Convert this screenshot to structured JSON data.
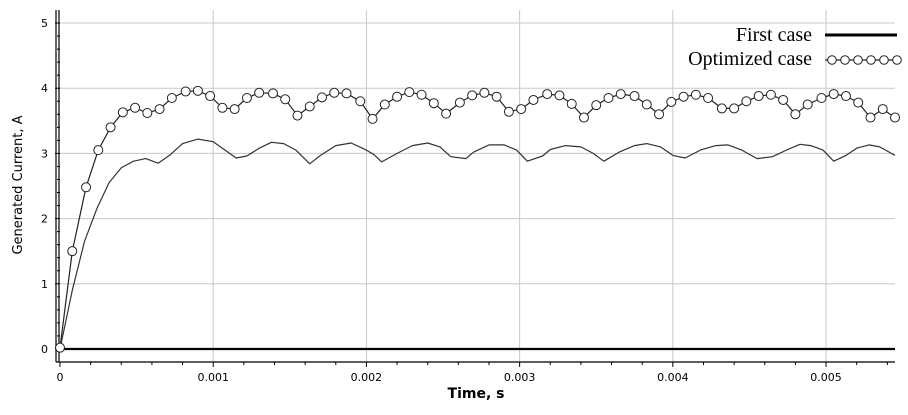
{
  "chart_data": {
    "type": "line",
    "title": "",
    "xlabel": "Time, s",
    "ylabel": "Generated Current, A",
    "xlim": [
      0,
      0.00545
    ],
    "ylim": [
      -0.2,
      5.2
    ],
    "xticks": [
      0,
      0.001,
      0.002,
      0.003,
      0.004,
      0.005
    ],
    "xtick_labels": [
      "0",
      "0.001",
      "0.002",
      "0.003",
      "0.004",
      "0.005"
    ],
    "yticks": [
      0,
      1,
      2,
      3,
      4,
      5
    ],
    "ytick_labels": [
      "0",
      "1",
      "2",
      "3",
      "4",
      "5"
    ],
    "grid": true,
    "legend_position": "top-right",
    "series": [
      {
        "name": "First case",
        "style": "line",
        "color": "#000000",
        "x": [
          0,
          0.00545
        ],
        "y": [
          0,
          0
        ]
      },
      {
        "name": "",
        "style": "line",
        "color": "#333333",
        "x": [
          0,
          8e-05,
          0.00016,
          0.00024,
          0.00032,
          0.0004,
          0.00048,
          0.00056,
          0.00064,
          0.00072,
          0.0008,
          0.0009,
          0.001,
          0.00106,
          0.00115,
          0.00122,
          0.0013,
          0.00138,
          0.00146,
          0.00154,
          0.00163,
          0.0017,
          0.0018,
          0.0019,
          0.002,
          0.00205,
          0.0021,
          0.0022,
          0.0023,
          0.0024,
          0.00248,
          0.00255,
          0.00265,
          0.0027,
          0.0028,
          0.0029,
          0.00298,
          0.00305,
          0.00315,
          0.0032,
          0.0033,
          0.0034,
          0.00348,
          0.00355,
          0.00365,
          0.00375,
          0.00383,
          0.00392,
          0.004,
          0.00408,
          0.00418,
          0.00428,
          0.00436,
          0.00445,
          0.00455,
          0.00465,
          0.00475,
          0.00483,
          0.0049,
          0.00498,
          0.00505,
          0.00513,
          0.0052,
          0.00528,
          0.00535,
          0.00545
        ],
        "y": [
          0,
          0.9,
          1.65,
          2.15,
          2.55,
          2.78,
          2.88,
          2.92,
          2.85,
          2.98,
          3.15,
          3.22,
          3.18,
          3.08,
          2.93,
          2.96,
          3.08,
          3.17,
          3.15,
          3.05,
          2.84,
          2.97,
          3.12,
          3.16,
          3.05,
          2.98,
          2.87,
          3.0,
          3.12,
          3.16,
          3.1,
          2.95,
          2.92,
          3.02,
          3.13,
          3.13,
          3.05,
          2.88,
          2.96,
          3.06,
          3.12,
          3.1,
          3.0,
          2.88,
          3.02,
          3.12,
          3.15,
          3.1,
          2.97,
          2.93,
          3.05,
          3.12,
          3.13,
          3.05,
          2.92,
          2.95,
          3.06,
          3.14,
          3.12,
          3.05,
          2.88,
          2.97,
          3.08,
          3.13,
          3.1,
          2.97
        ]
      },
      {
        "name": "Optimized case",
        "style": "line-markers",
        "marker": "circle",
        "color": "#222222",
        "x": [
          0,
          8e-05,
          0.00017,
          0.00025,
          0.00033,
          0.00041,
          0.00049,
          0.00057,
          0.00065,
          0.00073,
          0.00082,
          0.0009,
          0.00098,
          0.00106,
          0.00114,
          0.00122,
          0.0013,
          0.00139,
          0.00147,
          0.00155,
          0.00163,
          0.00171,
          0.00179,
          0.00187,
          0.00196,
          0.00204,
          0.00212,
          0.0022,
          0.00228,
          0.00236,
          0.00244,
          0.00252,
          0.00261,
          0.00269,
          0.00277,
          0.00285,
          0.00293,
          0.00301,
          0.00309,
          0.00318,
          0.00326,
          0.00334,
          0.00342,
          0.0035,
          0.00358,
          0.00366,
          0.00375,
          0.00383,
          0.00391,
          0.00399,
          0.00407,
          0.00415,
          0.00423,
          0.00432,
          0.0044,
          0.00448,
          0.00456,
          0.00464,
          0.00472,
          0.0048,
          0.00488,
          0.00497,
          0.00505,
          0.00513,
          0.00521,
          0.00529,
          0.00537,
          0.00545
        ],
        "y": [
          0.02,
          1.5,
          2.48,
          3.05,
          3.4,
          3.63,
          3.7,
          3.62,
          3.68,
          3.85,
          3.95,
          3.96,
          3.88,
          3.7,
          3.68,
          3.85,
          3.93,
          3.92,
          3.83,
          3.58,
          3.72,
          3.86,
          3.93,
          3.92,
          3.8,
          3.53,
          3.75,
          3.87,
          3.94,
          3.9,
          3.77,
          3.61,
          3.78,
          3.89,
          3.93,
          3.87,
          3.64,
          3.68,
          3.82,
          3.91,
          3.89,
          3.76,
          3.55,
          3.74,
          3.85,
          3.91,
          3.88,
          3.75,
          3.6,
          3.79,
          3.87,
          3.9,
          3.85,
          3.69,
          3.69,
          3.8,
          3.88,
          3.9,
          3.82,
          3.6,
          3.75,
          3.85,
          3.91,
          3.88,
          3.78,
          3.55,
          3.68,
          3.55
        ]
      }
    ]
  }
}
